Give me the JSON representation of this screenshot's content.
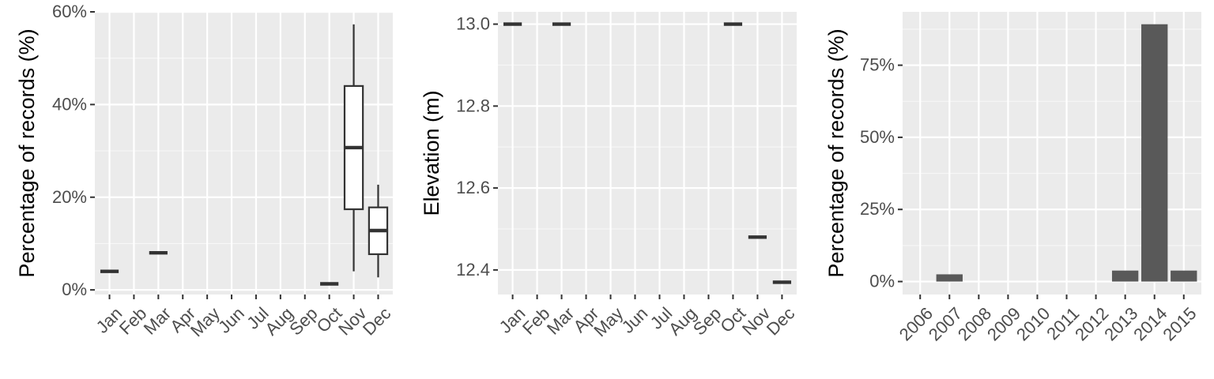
{
  "chart_data": [
    {
      "type": "box",
      "ylabel": "Percentage of records (%)",
      "categories": [
        "Jan",
        "Feb",
        "Mar",
        "Apr",
        "May",
        "Jun",
        "Jul",
        "Aug",
        "Sep",
        "Oct",
        "Nov",
        "Dec"
      ],
      "ylim": [
        -1,
        60
      ],
      "y_ticks": [
        {
          "value": 0,
          "label": "0%"
        },
        {
          "value": 20,
          "label": "20%"
        },
        {
          "value": 40,
          "label": "40%"
        },
        {
          "value": 60,
          "label": "60%"
        }
      ],
      "boxes": [
        {
          "category": "Jan",
          "min": 4.0,
          "q1": 4.0,
          "median": 4.0,
          "q3": 4.0,
          "max": 4.0
        },
        {
          "category": "Mar",
          "min": 8.0,
          "q1": 8.0,
          "median": 8.0,
          "q3": 8.0,
          "max": 8.0
        },
        {
          "category": "Oct",
          "min": 1.3,
          "q1": 1.3,
          "median": 1.3,
          "q3": 1.3,
          "max": 1.3
        },
        {
          "category": "Nov",
          "min": 4.0,
          "q1": 17.4,
          "median": 30.7,
          "q3": 44.0,
          "max": 57.3
        },
        {
          "category": "Dec",
          "min": 2.7,
          "q1": 7.7,
          "median": 12.8,
          "q3": 17.8,
          "max": 22.7
        }
      ]
    },
    {
      "type": "box",
      "ylabel": "Elevation (m)",
      "categories": [
        "Jan",
        "Feb",
        "Mar",
        "Apr",
        "May",
        "Jun",
        "Jul",
        "Aug",
        "Sep",
        "Oct",
        "Nov",
        "Dec"
      ],
      "ylim": [
        12.34,
        13.03
      ],
      "y_ticks": [
        {
          "value": 12.4,
          "label": "12.4"
        },
        {
          "value": 12.6,
          "label": "12.6"
        },
        {
          "value": 12.8,
          "label": "12.8"
        },
        {
          "value": 13.0,
          "label": "13.0"
        }
      ],
      "boxes": [
        {
          "category": "Jan",
          "min": 13.0,
          "q1": 13.0,
          "median": 13.0,
          "q3": 13.0,
          "max": 13.0
        },
        {
          "category": "Mar",
          "min": 13.0,
          "q1": 13.0,
          "median": 13.0,
          "q3": 13.0,
          "max": 13.0
        },
        {
          "category": "Oct",
          "min": 13.0,
          "q1": 13.0,
          "median": 13.0,
          "q3": 13.0,
          "max": 13.0
        },
        {
          "category": "Nov",
          "min": 12.48,
          "q1": 12.48,
          "median": 12.48,
          "q3": 12.48,
          "max": 12.48
        },
        {
          "category": "Dec",
          "min": 12.37,
          "q1": 12.37,
          "median": 12.37,
          "q3": 12.37,
          "max": 12.37
        }
      ]
    },
    {
      "type": "bar",
      "ylabel": "Percentage of records (%)",
      "categories": [
        "2006",
        "2007",
        "2008",
        "2009",
        "2010",
        "2011",
        "2012",
        "2013",
        "2014",
        "2015"
      ],
      "values": [
        0,
        2.5,
        0,
        0,
        0,
        0,
        0,
        3.8,
        89.2,
        3.8
      ],
      "ylim": [
        -4.5,
        93.5
      ],
      "y_ticks": [
        {
          "value": 0,
          "label": "0%"
        },
        {
          "value": 25,
          "label": "25%"
        },
        {
          "value": 50,
          "label": "50%"
        },
        {
          "value": 75,
          "label": "75%"
        }
      ]
    }
  ]
}
